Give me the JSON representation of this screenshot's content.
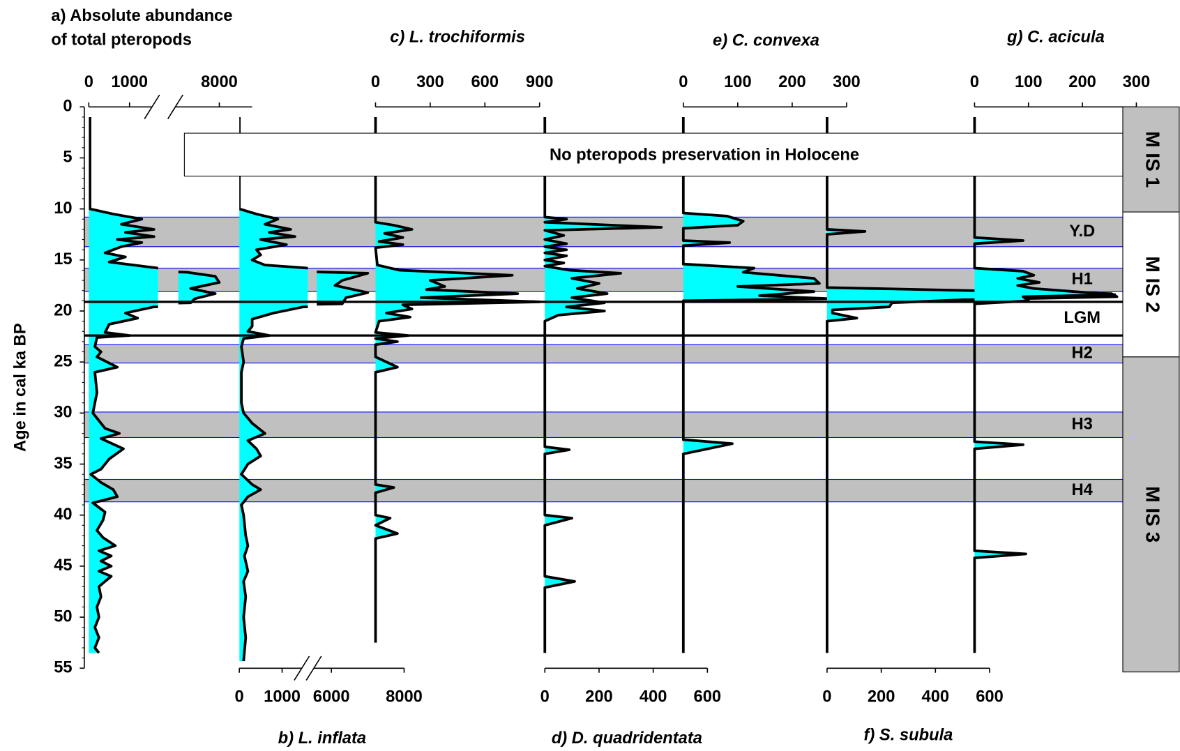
{
  "chart_data": {
    "type": "stratigraphic",
    "y_label": "Age in cal ka BP",
    "ylim": [
      0,
      55
    ],
    "yticks": [
      0,
      5,
      10,
      15,
      20,
      25,
      30,
      35,
      40,
      45,
      50,
      55
    ],
    "fill_color": "#00ffff",
    "line_color": "#000000",
    "note": "No pteropods preservation in Holocene",
    "bands_color": "#c0c0c0",
    "bands_border": "#0000ff",
    "bands": [
      {
        "label": "Y.D",
        "range": [
          10.8,
          13.7
        ]
      },
      {
        "label": "H1",
        "range": [
          15.8,
          18.1
        ]
      },
      {
        "label": "H2",
        "range": [
          23.3,
          25.1
        ]
      },
      {
        "label": "H3",
        "range": [
          29.9,
          32.4
        ]
      },
      {
        "label": "H4",
        "range": [
          36.5,
          38.7
        ]
      }
    ],
    "lgm": {
      "label": "LGM",
      "lines": [
        19.1,
        22.4
      ]
    },
    "mis": [
      {
        "label": "M IS 1",
        "range": [
          0,
          10.3
        ],
        "color": "#c0c0c0"
      },
      {
        "label": "M IS 2",
        "range": [
          10.3,
          24.5
        ],
        "color": "#ffffff"
      },
      {
        "label": "M IS 3",
        "range": [
          24.5,
          55
        ],
        "color": "#c0c0c0"
      }
    ],
    "panels": [
      {
        "title": [
          "a) Absolute abundance",
          "of total pteropods"
        ],
        "axis": "top",
        "xsegments": [
          [
            0,
            1700
          ],
          [
            7000,
            8800
          ]
        ],
        "xticks": [
          0,
          1000,
          8000
        ],
        "age": [
          1,
          10,
          10.5,
          11,
          11.5,
          12,
          12.3,
          12.7,
          13,
          13.3,
          13.7,
          14.3,
          14.7,
          15.2,
          15.8,
          16.2,
          16.6,
          17.2,
          17.8,
          18.3,
          18.8,
          19.2,
          19.6,
          20.2,
          20.7,
          21.3,
          22.1,
          22.4,
          22.6,
          23.5,
          24,
          24.5,
          25.5,
          26,
          28,
          30,
          31.5,
          32,
          32.5,
          33.5,
          34.5,
          35.5,
          36,
          36.8,
          37.5,
          38.2,
          38.8,
          39.7,
          40.5,
          41.5,
          42.2,
          43,
          43.5,
          44,
          44.5,
          45,
          45.5,
          46,
          46.5,
          47,
          48,
          49,
          50,
          51,
          52,
          53,
          53.5
        ],
        "values": [
          30,
          30,
          600,
          1300,
          800,
          1600,
          900,
          1600,
          700,
          1300,
          800,
          400,
          900,
          500,
          1700,
          7200,
          7900,
          8000,
          7300,
          7900,
          7400,
          7300,
          1600,
          900,
          1200,
          500,
          400,
          1000,
          200,
          150,
          300,
          200,
          700,
          150,
          200,
          100,
          400,
          750,
          300,
          850,
          500,
          300,
          50,
          300,
          600,
          700,
          100,
          400,
          350,
          200,
          350,
          650,
          250,
          550,
          300,
          550,
          250,
          550,
          400,
          250,
          300,
          200,
          250,
          150,
          250,
          150,
          250
        ]
      },
      {
        "title": "b) L. inflata",
        "axis": "bottom",
        "xsegments": [
          [
            0,
            1600
          ],
          [
            5600,
            8000
          ]
        ],
        "xticks": [
          0,
          1000,
          6000,
          8000
        ],
        "age": [
          1,
          10,
          10.5,
          11,
          11.5,
          12,
          12.3,
          12.7,
          13,
          13.5,
          14,
          14.5,
          15,
          15.5,
          15.8,
          16.3,
          17,
          17.5,
          18.2,
          18.7,
          19.3,
          19.6,
          20.2,
          20.8,
          21.5,
          22,
          22.4,
          22.7,
          23.5,
          25,
          26,
          29,
          30,
          31,
          32,
          32.7,
          33.5,
          34.2,
          35,
          36,
          37,
          37.5,
          38.2,
          39,
          40,
          42,
          43,
          44,
          45.5,
          46.5,
          48,
          50,
          52,
          54.3
        ],
        "values": [
          0,
          0,
          400,
          900,
          600,
          1200,
          700,
          1300,
          500,
          1100,
          400,
          500,
          300,
          600,
          1600,
          7000,
          6300,
          6100,
          7000,
          6400,
          6300,
          1500,
          800,
          300,
          300,
          200,
          700,
          100,
          50,
          100,
          50,
          50,
          100,
          300,
          600,
          200,
          400,
          500,
          200,
          50,
          300,
          500,
          200,
          50,
          100,
          150,
          200,
          120,
          200,
          100,
          150,
          100,
          150,
          100
        ]
      },
      {
        "title": "c) L. trochiformis",
        "axis": "top",
        "xlim": [
          0,
          900
        ],
        "xticks": [
          0,
          300,
          600,
          900
        ],
        "age": [
          1,
          11.3,
          11.6,
          12,
          12.4,
          12.8,
          13.2,
          13.5,
          13.8,
          15.5,
          16,
          16.5,
          17,
          17.6,
          17.9,
          18.3,
          18.7,
          19.1,
          19.4,
          19.8,
          20.2,
          20.6,
          21,
          22.1,
          22.4,
          22.7,
          23,
          23.3,
          24.5,
          25.5,
          26,
          37,
          37.3,
          37.8,
          40,
          40.3,
          41,
          41.8,
          42.3,
          52.5
        ],
        "values": [
          0,
          0,
          100,
          200,
          50,
          150,
          20,
          150,
          0,
          10,
          130,
          750,
          300,
          380,
          280,
          780,
          250,
          900,
          150,
          200,
          60,
          190,
          20,
          0,
          180,
          0,
          120,
          0,
          0,
          120,
          0,
          0,
          100,
          0,
          0,
          80,
          0,
          120,
          0,
          0
        ]
      },
      {
        "title": "d) D. quadridentata",
        "axis": "bottom",
        "xlim": [
          0,
          600
        ],
        "xticks": [
          0,
          200,
          400,
          600
        ],
        "age": [
          1,
          10.8,
          11,
          11.3,
          11.8,
          12.1,
          12.6,
          13,
          13.4,
          13.7,
          14,
          14.3,
          14.6,
          15,
          15.3,
          15.6,
          16,
          16.3,
          16.8,
          17.3,
          17.8,
          18.3,
          18.7,
          19.2,
          19.6,
          20,
          20.4,
          21,
          33.3,
          33.6,
          34,
          40,
          40.3,
          41,
          46,
          46.5,
          47.1,
          53.5
        ],
        "values": [
          0,
          0,
          80,
          0,
          430,
          0,
          70,
          0,
          80,
          0,
          80,
          0,
          80,
          0,
          70,
          0,
          90,
          280,
          100,
          200,
          120,
          230,
          100,
          220,
          80,
          220,
          50,
          0,
          0,
          90,
          0,
          0,
          100,
          0,
          0,
          110,
          0,
          0
        ]
      },
      {
        "title": "e) C. convexa",
        "axis": "top",
        "xlim": [
          0,
          300
        ],
        "xticks": [
          0,
          100,
          200,
          300
        ],
        "age": [
          1,
          10.4,
          10.7,
          11.2,
          11.6,
          11.9,
          13.1,
          13.3,
          13.6,
          15.4,
          15.8,
          16.2,
          16.8,
          17.3,
          17.6,
          18.1,
          18.5,
          18.8,
          19,
          32.6,
          33,
          34,
          53.5
        ],
        "values": [
          0,
          0,
          80,
          110,
          100,
          0,
          0,
          85,
          0,
          0,
          130,
          110,
          240,
          250,
          100,
          240,
          140,
          270,
          0,
          0,
          90,
          0,
          0
        ]
      },
      {
        "title": "f) S. subula",
        "axis": "bottom",
        "xlim": [
          0,
          600
        ],
        "xticks": [
          0,
          200,
          400,
          600
        ],
        "age": [
          1,
          12,
          12.2,
          12.5,
          17.7,
          18.3,
          18.6,
          18.9,
          19.2,
          19.6,
          19.9,
          20.2,
          20.7,
          21,
          53.5
        ],
        "values": [
          0,
          0,
          140,
          0,
          0,
          1050,
          1070,
          500,
          240,
          230,
          20,
          20,
          110,
          0,
          0
        ]
      },
      {
        "title": "g) C. acicula",
        "axis": "top",
        "xlim": [
          0,
          300
        ],
        "xticks": [
          0,
          100,
          200,
          300
        ],
        "age": [
          1,
          12.8,
          13.1,
          13.4,
          15.8,
          16.1,
          16.5,
          16.8,
          17.2,
          17.5,
          17.8,
          18.4,
          18.6,
          19,
          19.3,
          32.8,
          33.1,
          33.5,
          43.5,
          43.8,
          44.2,
          53.5
        ],
        "values": [
          0,
          0,
          90,
          0,
          0,
          90,
          110,
          80,
          120,
          80,
          110,
          260,
          90,
          100,
          0,
          0,
          90,
          0,
          0,
          95,
          0,
          0
        ]
      }
    ]
  }
}
